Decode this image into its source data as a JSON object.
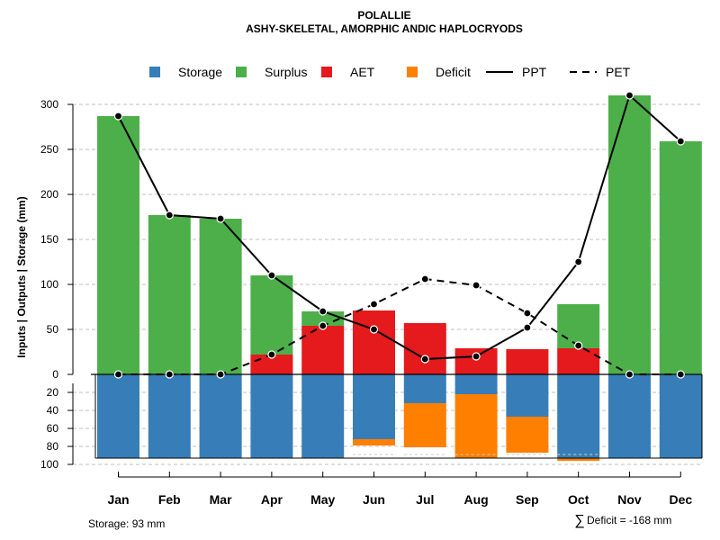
{
  "chart_data": {
    "type": "bar",
    "title": "POLALLIE",
    "subtitle": "ASHY-SKELETAL, AMORPHIC ANDIC HAPLOCRYODS",
    "ylabel": "Inputs | Outputs | Storage    (mm)",
    "categories": [
      "Jan",
      "Feb",
      "Mar",
      "Apr",
      "May",
      "Jun",
      "Jul",
      "Aug",
      "Sep",
      "Oct",
      "Nov",
      "Dec"
    ],
    "ylim": [
      0,
      320
    ],
    "lower_ylim": [
      0,
      100
    ],
    "yticks_upper": [
      0,
      50,
      100,
      150,
      200,
      250,
      300
    ],
    "yticks_upper_labels": [
      "0",
      "50",
      "100",
      "150",
      "200",
      "250",
      "300"
    ],
    "yticks_lower": [
      20,
      40,
      60,
      80,
      100
    ],
    "yticks_lower_labels": [
      "20",
      "40",
      "60",
      "80",
      "100"
    ],
    "series": [
      {
        "name": "Storage",
        "color": "#377EB8",
        "values": [
          93,
          93,
          93,
          93,
          93,
          72,
          32,
          22,
          47,
          93,
          93,
          93
        ]
      },
      {
        "name": "Surplus",
        "color": "#4DAF4A",
        "values": [
          287,
          177,
          173,
          88,
          16,
          0,
          0,
          0,
          0,
          49,
          310,
          259
        ]
      },
      {
        "name": "AET",
        "color": "#E41A1C",
        "values": [
          0,
          0,
          0,
          22,
          54,
          71,
          57,
          29,
          28,
          29,
          0,
          0
        ]
      },
      {
        "name": "Deficit",
        "color": "#FF7F00",
        "values": [
          0,
          0,
          0,
          0,
          0,
          7,
          49,
          71,
          40,
          3,
          0,
          0
        ]
      },
      {
        "name": "PPT",
        "values": [
          287,
          177,
          173,
          110,
          70,
          50,
          17,
          20,
          52,
          125,
          310,
          259
        ]
      },
      {
        "name": "PET",
        "values": [
          0,
          0,
          0,
          22,
          54,
          78,
          106,
          99,
          68,
          32,
          0,
          0
        ]
      }
    ],
    "legend": [
      "Storage",
      "Surplus",
      "AET",
      "Deficit",
      "PPT",
      "PET"
    ],
    "legend_position": "top",
    "grid": true
  },
  "footer": {
    "storage_note": "Storage: 93 mm",
    "sum_symbol": "∑",
    "deficit_note": "Deficit = -168 mm"
  }
}
